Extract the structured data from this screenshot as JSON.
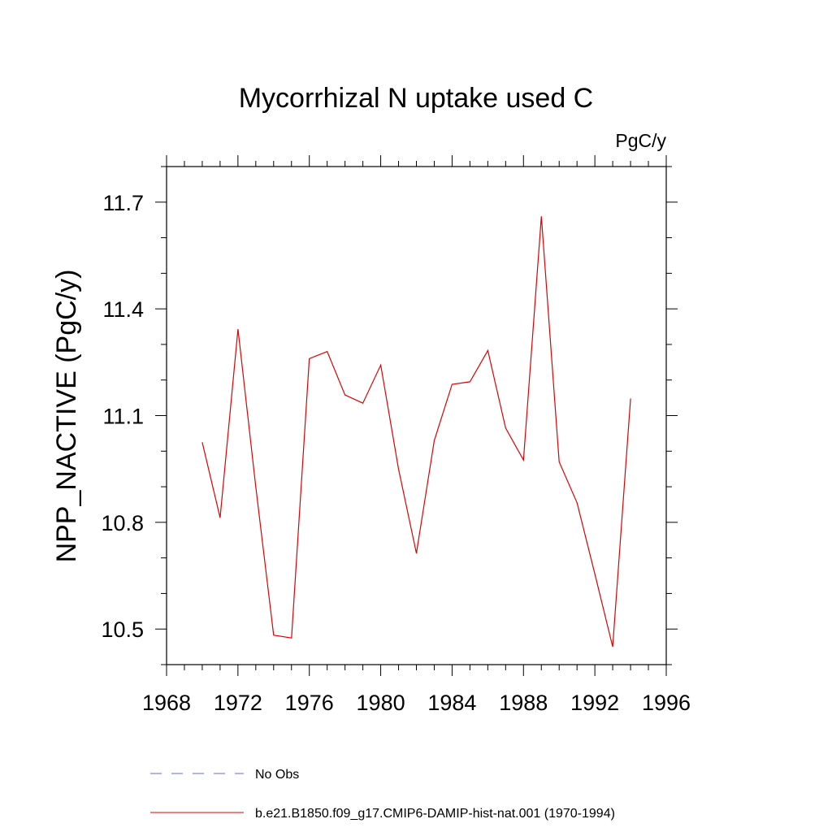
{
  "chart_data": {
    "type": "line",
    "title": "Mycorrhizal N uptake used C",
    "units_label": "PgC/y",
    "ylabel": "NPP_NACTIVE  (PgC/y)",
    "xlabel": "",
    "xlim": [
      1968,
      1996
    ],
    "ylim": [
      10.4,
      11.8
    ],
    "x_ticks": [
      1968,
      1972,
      1976,
      1980,
      1984,
      1988,
      1992,
      1996
    ],
    "x_tick_labels": [
      "1968",
      "1972",
      "1976",
      "1980",
      "1984",
      "1988",
      "1992",
      "1996"
    ],
    "y_ticks": [
      10.5,
      10.8,
      11.1,
      11.4,
      11.7
    ],
    "y_tick_labels": [
      "10.5",
      "10.8",
      "11.1",
      "11.4",
      "11.7"
    ],
    "x_minor_step": 1,
    "y_minor_step": 0.1,
    "grid": false,
    "legend_position": "bottom",
    "series": [
      {
        "name": "No Obs",
        "color": "#6a6ad8",
        "dash": "dashed",
        "x": [],
        "values": []
      },
      {
        "name": "b.e21.B1850.f09_g17.CMIP6-DAMIP-hist-nat.001 (1970-1994)",
        "color": "#e00000",
        "dash": "solid",
        "x": [
          1970,
          1971,
          1972,
          1973,
          1974,
          1975,
          1976,
          1977,
          1978,
          1979,
          1980,
          1981,
          1982,
          1983,
          1984,
          1985,
          1986,
          1987,
          1988,
          1989,
          1990,
          1991,
          1992,
          1993,
          1994
        ],
        "values": [
          11.025,
          10.813,
          11.343,
          10.9,
          10.483,
          10.475,
          11.26,
          11.28,
          11.158,
          11.135,
          11.242,
          10.95,
          10.713,
          11.03,
          11.188,
          11.195,
          11.283,
          11.065,
          10.975,
          11.66,
          10.97,
          10.855,
          10.655,
          10.45,
          11.148
        ]
      }
    ]
  }
}
